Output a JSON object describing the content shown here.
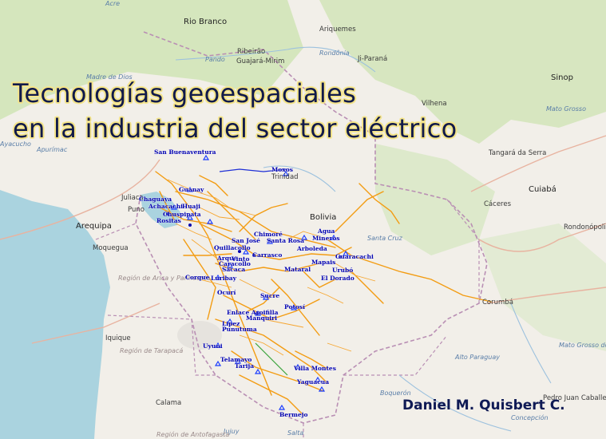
{
  "title": {
    "line1": "Tecnologías geoespaciales",
    "line2": "en la industria del sector eléctrico"
  },
  "author": "Daniel M. Quisbert C.",
  "colors": {
    "ocean": "#aad3df",
    "land": "#f2efe9",
    "forest": "#c8dfa8",
    "transmission_lines": "#f39c12",
    "substation_marker": "#1a3cff",
    "title_text": "#111a4a",
    "title_halo": "#f4e48a"
  },
  "map_labels": {
    "cities": [
      "Acre",
      "Rio Branco",
      "Ariquemes",
      "Ribeirão",
      "Rondônia",
      "Ji-Paraná",
      "Guajará-Mirim",
      "Pando",
      "Sinop",
      "Vilhena",
      "Mato Grosso",
      "Tangará da Serra",
      "Cuiabá",
      "Cáceres",
      "Rondonópolis",
      "Arequipa",
      "Moquegua",
      "Iquique",
      "Calama",
      "Corumbá",
      "Santa Cruz",
      "Bolivia",
      "Trinidad",
      "Juliaca",
      "Puno",
      "Ayacucho",
      "Apurímac",
      "Madre de Dios",
      "Mato Grosso do Sul",
      "Alto Paraguay",
      "Boquerón",
      "Concepción",
      "Pedro Juan Caballero",
      "Jujuy",
      "Salta"
    ],
    "regions": [
      "Región de Arica y Parinacota",
      "Región de Tarapacá",
      "Región de Antofagasta"
    ]
  },
  "substations": [
    "San Buenaventura",
    "Moxos",
    "Guanay",
    "Chaguaya",
    "Achacachi",
    "Huaji",
    "Chuspipata",
    "Rositas",
    "Chimoré",
    "San José",
    "Santa Rosa",
    "Quillacollo",
    "Arque",
    "Carrasco",
    "Vinto",
    "Caracollo",
    "Sacaca",
    "Corque",
    "Luribay",
    "Mataral",
    "Arboleda",
    "Guaracachi",
    "Mineros",
    "Agua",
    "Mapais",
    "Urubó",
    "El Dorado",
    "Ocurí",
    "Sucre",
    "Potosí",
    "Enlace Aroifilla",
    "Manquiri",
    "Lipez",
    "Punutuma",
    "Uyuni",
    "Telamayo",
    "Tarija",
    "Villa Montes",
    "Yaguacua",
    "Bermejo",
    "Padilla",
    "Cámara"
  ]
}
